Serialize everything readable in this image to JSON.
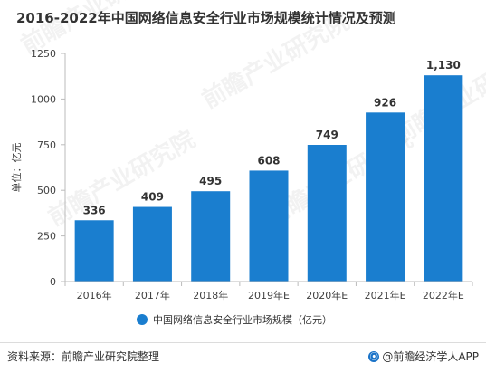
{
  "title": "2016-2022年中国网络信息安全行业市场规模统计情况及预测",
  "footer": {
    "source": "资料来源：前瞻产业研究院整理",
    "brand": "@前瞻经济学人APP"
  },
  "watermark": "前瞻产业研究院",
  "colors": {
    "bar": "#1a7ecf",
    "axis": "#bbbbbb",
    "text": "#404040"
  },
  "chart_data": {
    "type": "bar",
    "categories": [
      "2016年",
      "2017年",
      "2018年",
      "2019年E",
      "2020年E",
      "2021年E",
      "2022年E"
    ],
    "series": [
      {
        "name": "中国网络信息安全行业市场规模（亿元）",
        "values": [
          336,
          409,
          495,
          608,
          749,
          926,
          1130
        ]
      }
    ],
    "data_labels": [
      "336",
      "409",
      "495",
      "608",
      "749",
      "926",
      "1,130"
    ],
    "yticks": [
      0,
      250,
      500,
      750,
      1000,
      1250
    ],
    "ytick_labels": [
      "0",
      "250",
      "500",
      "750",
      "1000",
      "1250"
    ],
    "ylim": [
      0,
      1250
    ],
    "ylabel": "单位：亿元",
    "xlabel": "",
    "legend_position": "bottom-center",
    "grid": false
  }
}
